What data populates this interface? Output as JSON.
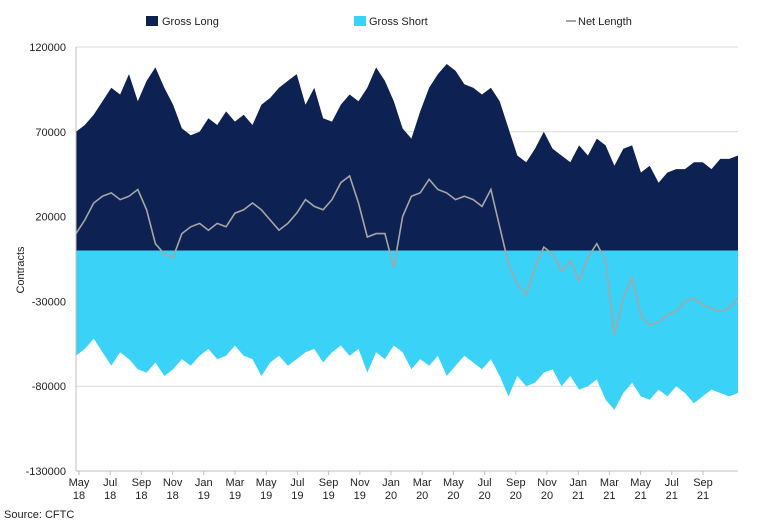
{
  "chart_data": {
    "type": "area",
    "title": "",
    "ylabel": "Contracts",
    "xlabel": "",
    "ylim": [
      -130000,
      120000
    ],
    "yticks": [
      120000,
      70000,
      20000,
      -30000,
      -80000,
      -130000
    ],
    "ytick_labels": [
      "120000",
      "70000",
      "20000",
      "-30000",
      "-80000",
      "-130000"
    ],
    "xtick_labels": [
      [
        "May",
        "18"
      ],
      [
        "Jul",
        "18"
      ],
      [
        "Sep",
        "18"
      ],
      [
        "Nov",
        "18"
      ],
      [
        "Jan",
        "19"
      ],
      [
        "Mar",
        "19"
      ],
      [
        "May",
        "19"
      ],
      [
        "Jul",
        "19"
      ],
      [
        "Sep",
        "19"
      ],
      [
        "Nov",
        "19"
      ],
      [
        "Jan",
        "20"
      ],
      [
        "Mar",
        "20"
      ],
      [
        "May",
        "20"
      ],
      [
        "Jul",
        "20"
      ],
      [
        "Sep",
        "20"
      ],
      [
        "Nov",
        "20"
      ],
      [
        "Jan",
        "21"
      ],
      [
        "Mar",
        "21"
      ],
      [
        "May",
        "21"
      ],
      [
        "Jul",
        "21"
      ],
      [
        "Sep",
        "21"
      ]
    ],
    "x_start": "2018-05",
    "x_end": "2021-11",
    "legend_position": "top",
    "grid": "horizontal",
    "colors": {
      "gross_long": "#0d2152",
      "gross_short": "#3bd2f8",
      "net_length": "#a6a6a6",
      "gridline": "#d9d9d9"
    },
    "series": [
      {
        "name": "Gross Long",
        "kind": "area",
        "values": [
          70000,
          74000,
          80000,
          88000,
          96000,
          92000,
          104000,
          88000,
          100000,
          108000,
          96000,
          86000,
          72000,
          68000,
          70000,
          78000,
          74000,
          82000,
          76000,
          80000,
          74000,
          86000,
          90000,
          96000,
          100000,
          104000,
          86000,
          96000,
          78000,
          76000,
          86000,
          92000,
          88000,
          96000,
          108000,
          100000,
          88000,
          72000,
          66000,
          82000,
          96000,
          104000,
          110000,
          106000,
          98000,
          96000,
          92000,
          96000,
          88000,
          72000,
          56000,
          52000,
          60000,
          70000,
          60000,
          56000,
          52000,
          62000,
          56000,
          66000,
          62000,
          50000,
          60000,
          62000,
          46000,
          50000,
          40000,
          46000,
          48000,
          48000,
          52000,
          52000,
          48000,
          54000,
          54000,
          56000
        ]
      },
      {
        "name": "Gross Short",
        "kind": "area",
        "values": [
          -62000,
          -58000,
          -52000,
          -60000,
          -68000,
          -60000,
          -64000,
          -70000,
          -72000,
          -66000,
          -74000,
          -70000,
          -64000,
          -68000,
          -62000,
          -58000,
          -64000,
          -62000,
          -56000,
          -62000,
          -64000,
          -74000,
          -66000,
          -62000,
          -68000,
          -64000,
          -60000,
          -58000,
          -66000,
          -60000,
          -56000,
          -62000,
          -58000,
          -72000,
          -60000,
          -64000,
          -56000,
          -60000,
          -70000,
          -64000,
          -68000,
          -62000,
          -74000,
          -68000,
          -62000,
          -66000,
          -70000,
          -64000,
          -74000,
          -86000,
          -74000,
          -80000,
          -78000,
          -72000,
          -70000,
          -80000,
          -74000,
          -82000,
          -80000,
          -76000,
          -88000,
          -94000,
          -84000,
          -78000,
          -86000,
          -88000,
          -82000,
          -86000,
          -80000,
          -84000,
          -90000,
          -86000,
          -82000,
          -84000,
          -86000,
          -84000
        ]
      },
      {
        "name": "Net Length",
        "kind": "line",
        "values": [
          10000,
          18000,
          28000,
          32000,
          34000,
          30000,
          32000,
          36000,
          24000,
          4000,
          -2000,
          -4000,
          10000,
          14000,
          16000,
          12000,
          16000,
          14000,
          22000,
          24000,
          28000,
          24000,
          18000,
          12000,
          16000,
          22000,
          30000,
          26000,
          24000,
          30000,
          40000,
          44000,
          28000,
          8000,
          10000,
          10000,
          -10000,
          20000,
          32000,
          34000,
          42000,
          36000,
          34000,
          30000,
          32000,
          30000,
          26000,
          36000,
          14000,
          -8000,
          -20000,
          -26000,
          -10000,
          2000,
          -2000,
          -12000,
          -6000,
          -18000,
          -4000,
          4000,
          -6000,
          -50000,
          -28000,
          -16000,
          -38000,
          -44000,
          -42000,
          -38000,
          -36000,
          -30000,
          -28000,
          -32000,
          -34000,
          -36000,
          -34000,
          -28000
        ]
      }
    ],
    "source": "Source: CFTC"
  }
}
